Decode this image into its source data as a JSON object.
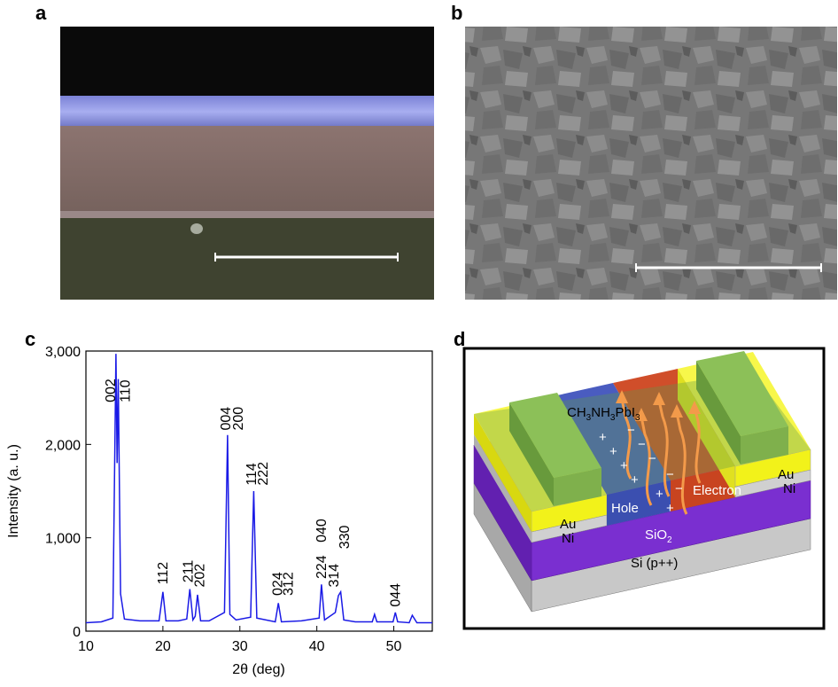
{
  "panel_labels": [
    "a",
    "b",
    "c",
    "d"
  ],
  "chart_data": {
    "type": "line",
    "xlabel": "2θ (deg)",
    "ylabel": "Intensity (a. u.)",
    "x": [
      10,
      12,
      13.5,
      13.9,
      14.05,
      14.2,
      14.5,
      15,
      17,
      19.5,
      20,
      20.4,
      22,
      23.1,
      23.5,
      23.9,
      24.2,
      24.5,
      24.9,
      26,
      28,
      28.4,
      28.7,
      29.5,
      31.4,
      31.8,
      32.2,
      34.6,
      35,
      35.4,
      38,
      40.3,
      40.6,
      41,
      42.4,
      42.8,
      43.1,
      43.5,
      45,
      47.2,
      47.5,
      47.8,
      49.9,
      50.2,
      50.5,
      52,
      52.4,
      53,
      55
    ],
    "values": [
      90,
      100,
      140,
      2970,
      1800,
      2700,
      400,
      130,
      110,
      110,
      420,
      110,
      110,
      130,
      450,
      120,
      160,
      390,
      110,
      110,
      200,
      2100,
      180,
      120,
      150,
      1500,
      140,
      100,
      300,
      100,
      110,
      140,
      500,
      120,
      200,
      380,
      420,
      120,
      100,
      100,
      180,
      100,
      100,
      200,
      100,
      90,
      170,
      90,
      90
    ],
    "color": "#1a1ae6",
    "xlim": [
      10,
      55
    ],
    "xticks": [
      10,
      20,
      30,
      40,
      50
    ],
    "ylim": [
      0,
      3000
    ],
    "yticks": [
      0,
      {
        "value": 1000,
        "label": "1,000"
      },
      {
        "value": 2000,
        "label": "2,000"
      },
      {
        "value": 3000,
        "label": "3,000"
      }
    ],
    "annotations": [
      {
        "text": "002",
        "x": 13.2,
        "y": 2450
      },
      {
        "text": "110",
        "x": 15.1,
        "y": 2450
      },
      {
        "text": "112",
        "x": 20,
        "y": 500
      },
      {
        "text": "211",
        "x": 23.3,
        "y": 520
      },
      {
        "text": "202",
        "x": 24.8,
        "y": 470
      },
      {
        "text": "004",
        "x": 28.2,
        "y": 2150
      },
      {
        "text": "200",
        "x": 29.8,
        "y": 2150
      },
      {
        "text": "114",
        "x": 31.5,
        "y": 1560
      },
      {
        "text": "222",
        "x": 33,
        "y": 1560
      },
      {
        "text": "024",
        "x": 34.9,
        "y": 380
      },
      {
        "text": "312",
        "x": 36.3,
        "y": 380
      },
      {
        "text": "224",
        "x": 40.6,
        "y": 560
      },
      {
        "text": "040",
        "x": 40.6,
        "y": 950
      },
      {
        "text": "314",
        "x": 42.2,
        "y": 470
      },
      {
        "text": "330",
        "x": 43.6,
        "y": 880
      },
      {
        "text": "044",
        "x": 50.2,
        "y": 260
      }
    ]
  },
  "diagram": {
    "formula": [
      "CH",
      "3",
      "NH",
      "3",
      "PbI",
      "3"
    ],
    "au_left": "Au",
    "ni_left": "Ni",
    "au_right": "Au",
    "ni_right": "Ni",
    "sio2": [
      "SiO",
      "2"
    ],
    "si": "Si (p++)",
    "hole": "Hole",
    "electron": "Electron",
    "plus": "+",
    "minus": "−"
  }
}
